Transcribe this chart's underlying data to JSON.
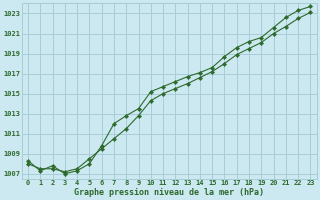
{
  "line1_x": [
    0,
    1,
    2,
    3,
    4,
    5,
    6,
    7,
    8,
    9,
    10,
    11,
    12,
    13,
    14,
    15,
    16,
    17,
    18,
    19,
    20,
    21,
    22,
    23
  ],
  "line1_y": [
    1008.0,
    1007.5,
    1007.5,
    1007.2,
    1007.5,
    1008.5,
    1009.5,
    1010.5,
    1011.5,
    1012.8,
    1014.3,
    1015.0,
    1015.5,
    1016.0,
    1016.6,
    1017.2,
    1018.0,
    1018.9,
    1019.5,
    1020.1,
    1021.0,
    1021.7,
    1022.5,
    1023.1
  ],
  "line2_x": [
    0,
    1,
    2,
    3,
    4,
    5,
    6,
    7,
    8,
    9,
    10,
    11,
    12,
    13,
    14,
    15,
    16,
    17,
    18,
    19,
    20,
    21,
    22,
    23
  ],
  "line2_y": [
    1008.3,
    1007.3,
    1007.8,
    1007.0,
    1007.3,
    1008.0,
    1009.8,
    1012.0,
    1012.8,
    1013.5,
    1015.2,
    1015.7,
    1016.2,
    1016.7,
    1017.1,
    1017.6,
    1018.7,
    1019.6,
    1020.2,
    1020.6,
    1021.6,
    1022.6,
    1023.3,
    1023.7
  ],
  "line_color": "#2d6a2d",
  "bg_color": "#cce8f0",
  "grid_color": "#a8cdd6",
  "xlabel": "Graphe pression niveau de la mer (hPa)",
  "ylim": [
    1006.5,
    1024.0
  ],
  "xlim": [
    -0.5,
    23.5
  ],
  "yticks": [
    1007,
    1009,
    1011,
    1013,
    1015,
    1017,
    1019,
    1021,
    1023
  ],
  "xticks": [
    0,
    1,
    2,
    3,
    4,
    5,
    6,
    7,
    8,
    9,
    10,
    11,
    12,
    13,
    14,
    15,
    16,
    17,
    18,
    19,
    20,
    21,
    22,
    23
  ],
  "tick_fontsize": 5.0,
  "xlabel_fontsize": 6.0
}
